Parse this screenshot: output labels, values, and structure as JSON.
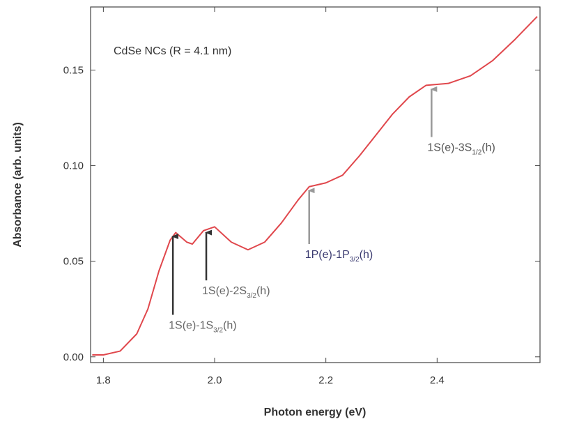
{
  "chart_data": {
    "type": "line",
    "inner_title": "CdSe NCs (R = 4.1 nm)",
    "x_label": "Photon energy (eV)",
    "y_label": "Absorbance (arb. units)",
    "x": [
      1.78,
      1.8,
      1.83,
      1.86,
      1.88,
      1.9,
      1.92,
      1.93,
      1.95,
      1.96,
      1.98,
      2.0,
      2.03,
      2.06,
      2.09,
      2.12,
      2.15,
      2.17,
      2.2,
      2.23,
      2.26,
      2.29,
      2.32,
      2.35,
      2.38,
      2.42,
      2.46,
      2.5,
      2.54,
      2.58
    ],
    "series": [
      {
        "color": "#e0474c",
        "values": [
          0.001,
          0.001,
          0.003,
          0.012,
          0.025,
          0.045,
          0.061,
          0.065,
          0.06,
          0.059,
          0.066,
          0.068,
          0.06,
          0.056,
          0.06,
          0.07,
          0.082,
          0.089,
          0.091,
          0.095,
          0.105,
          0.116,
          0.127,
          0.136,
          0.142,
          0.143,
          0.147,
          0.155,
          0.166,
          0.178
        ]
      }
    ],
    "xlim": [
      1.777,
      2.585
    ],
    "ylim": [
      -0.003,
      0.183
    ],
    "xticks": [
      1.8,
      {
        "value": 2,
        "label": "2.0"
      },
      2.2,
      2.4
    ],
    "yticks": [
      {
        "value": 0,
        "label": "0.00"
      },
      0.05,
      {
        "value": 0.1,
        "label": "0.10"
      },
      0.15
    ],
    "annotations": [
      {
        "text": "1S(e)-1S",
        "sub": "3/2",
        "suffix": "(h)",
        "x": 1.925,
        "y_tail": 0.022,
        "y_tip": 0.063,
        "arrow_color": "#333333",
        "text_color": "#666666"
      },
      {
        "text": "1S(e)-2S",
        "sub": "3/2",
        "suffix": "(h)",
        "x": 1.985,
        "y_tail": 0.04,
        "y_tip": 0.065,
        "arrow_color": "#333333",
        "text_color": "#666666"
      },
      {
        "text": "1P(e)-1P",
        "sub": "3/2",
        "suffix": "(h)",
        "x": 2.17,
        "y_tail": 0.059,
        "y_tip": 0.087,
        "arrow_color": "#999999",
        "text_color": "#3a3a70"
      },
      {
        "text": "1S(e)-3S",
        "sub": "1/2",
        "suffix": "(h)",
        "x": 2.39,
        "y_tail": 0.115,
        "y_tip": 0.14,
        "arrow_color": "#999999",
        "text_color": "#555555"
      }
    ]
  }
}
